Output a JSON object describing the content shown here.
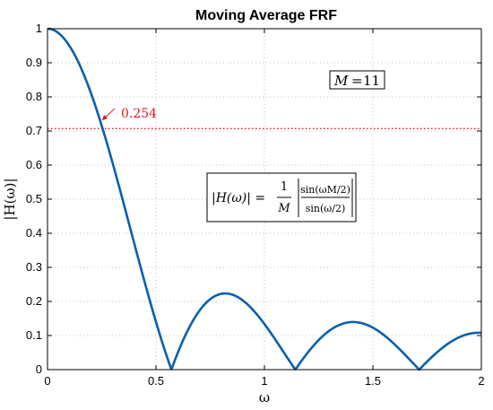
{
  "chart_data": {
    "type": "line",
    "title": "Moving Average FRF",
    "xlabel": "ω",
    "ylabel": "|H(ω)|",
    "xlim": [
      0,
      2
    ],
    "ylim": [
      0,
      1
    ],
    "x_ticks": [
      "0",
      "0.5",
      "1",
      "1.5",
      "2"
    ],
    "y_ticks": [
      "0",
      "0.1",
      "0.2",
      "0.3",
      "0.4",
      "0.5",
      "0.6",
      "0.7",
      "0.8",
      "0.9",
      "1"
    ],
    "grid": true,
    "M": 11,
    "series": [
      {
        "color": "#0b5fae",
        "function": "|sin(w*M/2)| / (M*|sin(w/2)|)",
        "x": [
          0,
          0.1,
          0.2,
          0.25,
          0.3,
          0.4,
          0.5,
          0.571,
          0.65,
          0.75,
          0.82,
          0.9,
          1.0,
          1.142,
          1.25,
          1.4,
          1.55,
          1.714,
          1.85,
          2.0
        ],
        "y": [
          1.0,
          0.955,
          0.828,
          0.745,
          0.653,
          0.448,
          0.236,
          0.0,
          0.128,
          0.208,
          0.222,
          0.201,
          0.117,
          0.0,
          0.087,
          0.14,
          0.1,
          0.0,
          0.08,
          0.107
        ]
      }
    ],
    "reference_line": {
      "y": 0.707,
      "color": "#e8141e",
      "style": "dotted"
    },
    "annotation": {
      "text": "0.254",
      "x": 0.254,
      "y": 0.707,
      "color": "#e8141e"
    },
    "textbox_m": {
      "lhs": "M",
      "rhs": "11"
    },
    "textbox_formula": {
      "lhs": "|H(ω)| =",
      "frac_num": "1",
      "frac_den": "M",
      "sin_top": "sin(ωM/2)",
      "sin_bot": "sin(ω/2)"
    }
  }
}
